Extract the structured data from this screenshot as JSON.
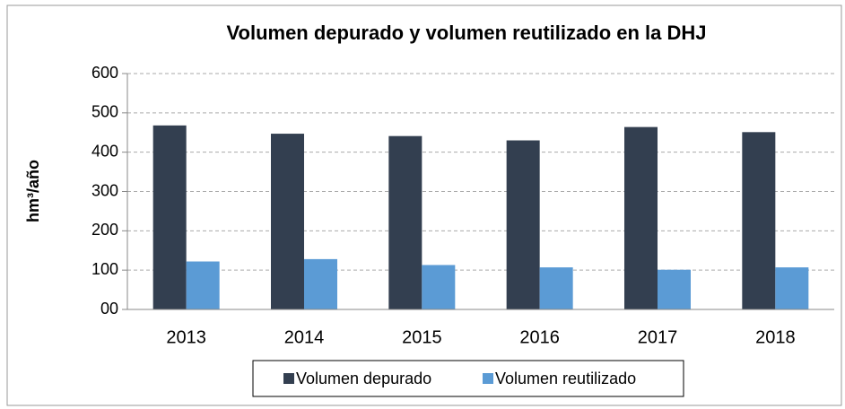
{
  "chart_data": {
    "type": "bar",
    "title": "Volumen depurado y volumen reutilizado en la DHJ",
    "y_label": "hm³/año",
    "categories": [
      "2013",
      "2014",
      "2015",
      "2016",
      "2017",
      "2018"
    ],
    "series": [
      {
        "name": "Volumen depurado",
        "color": "#333f50",
        "values": [
          468,
          447,
          441,
          430,
          464,
          451
        ]
      },
      {
        "name": "Volumen reutilizado",
        "color": "#5b9bd5",
        "values": [
          122,
          128,
          113,
          107,
          101,
          107
        ]
      }
    ],
    "ylim": [
      0,
      600
    ],
    "yticks": [
      {
        "value": 0,
        "label": "00"
      },
      100,
      200,
      300,
      400,
      500,
      600
    ],
    "grid": true,
    "legend": "bottom"
  }
}
